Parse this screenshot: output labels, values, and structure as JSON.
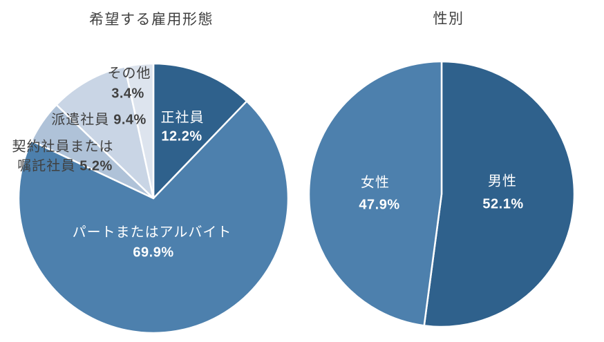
{
  "charts": {
    "employment": {
      "title": "希望する雇用形態",
      "labels": {
        "seishain_name": "正社員",
        "seishain_pct": "12.2%",
        "part_name": "パートまたはアルバイト",
        "part_pct": "69.9%",
        "keiyaku_line1": "契約社員または",
        "keiyaku_line2_name": "嘱託社員",
        "keiyaku_pct": "5.2%",
        "haken_name": "派遣社員",
        "haken_pct": "9.4%",
        "sonota_name": "その他",
        "sonota_pct": "3.4%"
      }
    },
    "gender": {
      "title": "性別",
      "labels": {
        "male_name": "男性",
        "male_pct": "52.1%",
        "female_name": "女性",
        "female_pct": "47.9%"
      }
    }
  },
  "colors": {
    "dark_blue": "#2F618C",
    "medium_blue": "#4D80AD",
    "light_blue_1": "#AFC2D8",
    "light_blue_2": "#C9D5E5",
    "light_blue_3": "#DDE4EE",
    "slice_border": "#FFFFFF",
    "title_text": "#404040",
    "inside_label_text": "#FFFFFF"
  },
  "chart_data": [
    {
      "type": "pie",
      "title": "希望する雇用形態",
      "labels": [
        "正社員",
        "パートまたはアルバイト",
        "契約社員または嘱託社員",
        "派遣社員",
        "その他"
      ],
      "values": [
        12.2,
        69.9,
        5.2,
        9.4,
        3.4
      ],
      "display_values": [
        "12.2%",
        "69.9%",
        "5.2%",
        "9.4%",
        "3.4%"
      ],
      "colors": [
        "#2F618C",
        "#4D80AD",
        "#AFC2D8",
        "#C9D5E5",
        "#DDE4EE"
      ],
      "start_angle_deg": 0,
      "direction": "clockwise",
      "slice_border_color": "#FFFFFF",
      "legend": "none; labels placed on/around slices"
    },
    {
      "type": "pie",
      "title": "性別",
      "labels": [
        "男性",
        "女性"
      ],
      "values": [
        52.1,
        47.9
      ],
      "display_values": [
        "52.1%",
        "47.9%"
      ],
      "colors": [
        "#2F618C",
        "#4D80AD"
      ],
      "start_angle_deg": 0,
      "direction": "clockwise",
      "slice_border_color": "#FFFFFF",
      "legend": "none; labels placed inside slices"
    }
  ]
}
